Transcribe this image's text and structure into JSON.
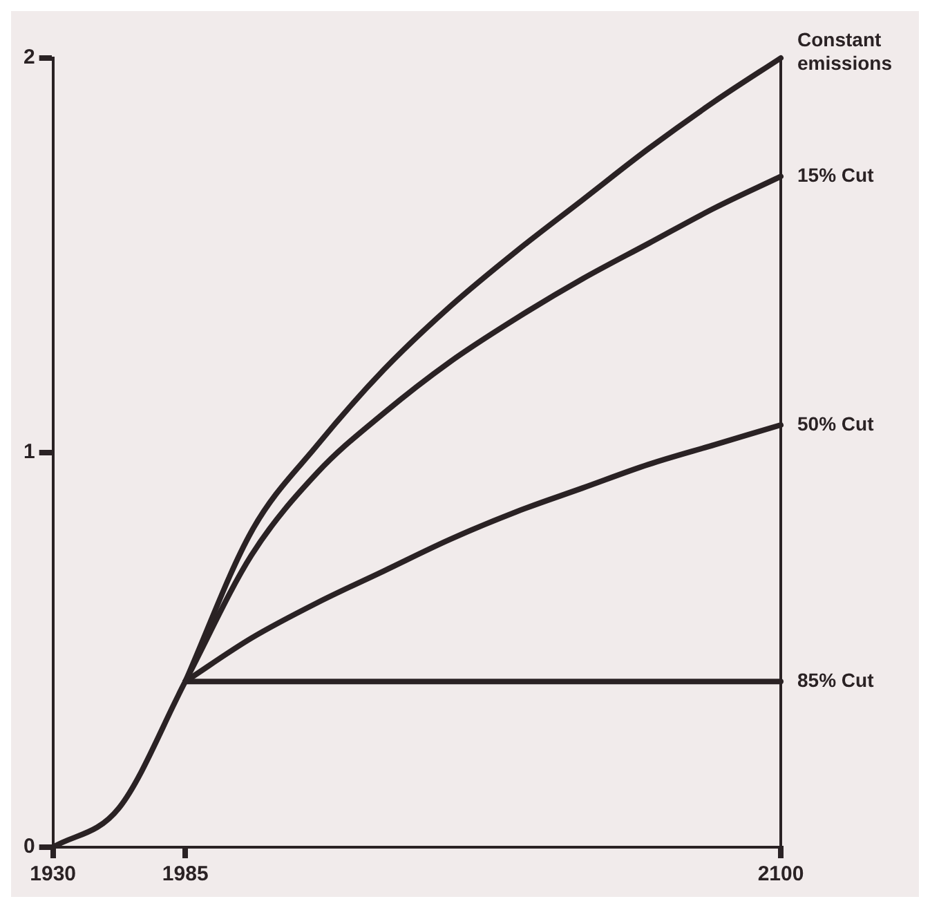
{
  "chart_data": {
    "type": "line",
    "categories": [
      "1930",
      null,
      "1985",
      null,
      null,
      null,
      null,
      null,
      null,
      null,
      null,
      "2100"
    ],
    "series": [
      {
        "color": "#2a2224",
        "values": [
          0,
          0.1,
          0.42,
          null,
          null,
          null,
          null,
          null,
          null,
          null,
          null,
          null
        ]
      },
      {
        "name": "Constant emissions",
        "color": "#2a2224",
        "values": [
          null,
          null,
          0.42,
          0.8,
          1.02,
          1.21,
          1.37,
          1.51,
          1.64,
          1.77,
          1.89,
          2.0
        ]
      },
      {
        "name": "15% Cut",
        "color": "#2a2224",
        "values": [
          null,
          null,
          0.42,
          0.74,
          0.95,
          1.1,
          1.23,
          1.34,
          1.44,
          1.53,
          1.62,
          1.7
        ]
      },
      {
        "name": "50% Cut",
        "color": "#2a2224",
        "values": [
          null,
          null,
          0.42,
          0.53,
          0.62,
          0.7,
          0.78,
          0.85,
          0.91,
          0.97,
          1.02,
          1.07
        ]
      },
      {
        "name": "85% Cut",
        "color": "#2a2224",
        "values": [
          null,
          null,
          0.42,
          0.42,
          0.42,
          0.42,
          0.42,
          0.42,
          0.42,
          0.42,
          0.42,
          0.42
        ]
      }
    ],
    "ylim": [
      0,
      2
    ],
    "yticks": [
      0,
      1,
      2
    ],
    "grid": false,
    "legend": false,
    "marker": "none",
    "line_style": "solid"
  }
}
